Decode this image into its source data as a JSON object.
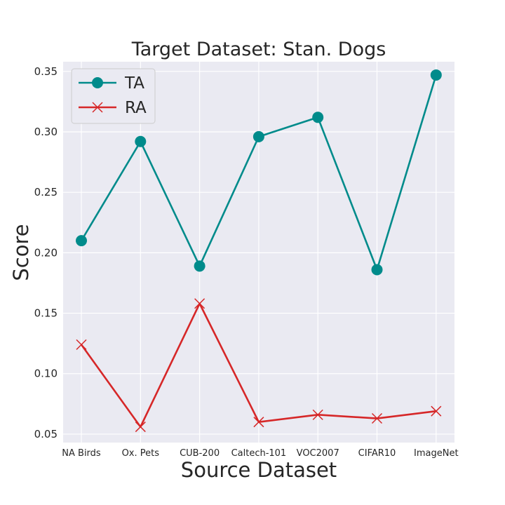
{
  "chart_data": {
    "type": "line",
    "title": "Target Dataset: Stan. Dogs",
    "xlabel": "Source Dataset",
    "ylabel": "Score",
    "categories": [
      "NA Birds",
      "Ox. Pets",
      "CUB-200",
      "Caltech-101",
      "VOC2007",
      "CIFAR10",
      "ImageNet"
    ],
    "ylim": [
      0.043,
      0.358
    ],
    "yticks": [
      0.05,
      0.1,
      0.15,
      0.2,
      0.25,
      0.3,
      0.35
    ],
    "ytick_labels": [
      "0.05",
      "0.10",
      "0.15",
      "0.20",
      "0.25",
      "0.30",
      "0.35"
    ],
    "grid": true,
    "legend_position": "top-left",
    "series": [
      {
        "name": "TA",
        "marker": "circle",
        "color": "#008b8b",
        "values": [
          0.21,
          0.292,
          0.189,
          0.296,
          0.312,
          0.186,
          0.347
        ]
      },
      {
        "name": "RA",
        "marker": "x",
        "color": "#d62728",
        "values": [
          0.124,
          0.056,
          0.158,
          0.06,
          0.066,
          0.063,
          0.069
        ]
      }
    ]
  }
}
